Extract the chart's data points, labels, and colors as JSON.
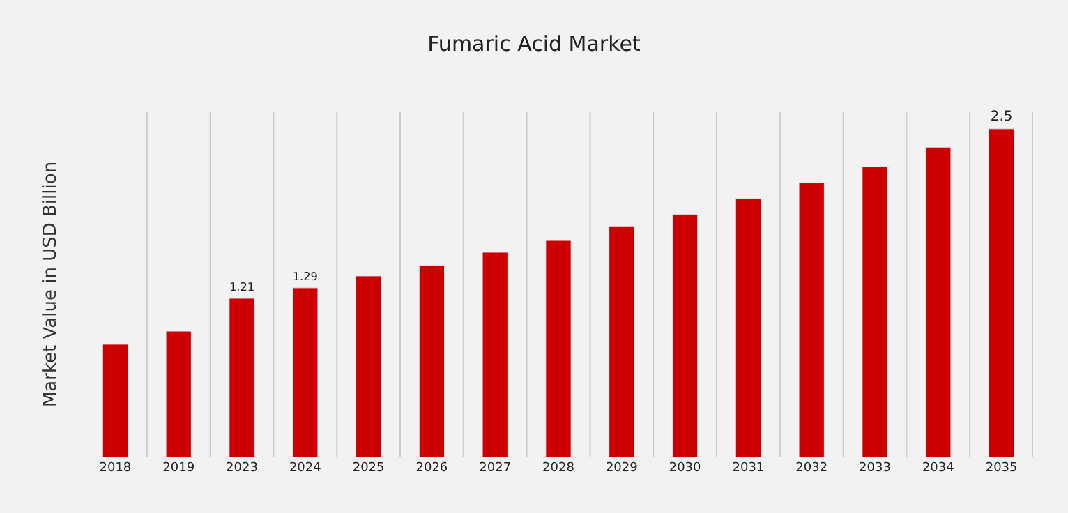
{
  "chart_data": {
    "type": "bar",
    "title": "Fumaric Acid Market",
    "ylabel": "Market Value in USD Billion",
    "categories": [
      "2018",
      "2019",
      "2023",
      "2024",
      "2025",
      "2026",
      "2027",
      "2028",
      "2029",
      "2030",
      "2031",
      "2032",
      "2033",
      "2034",
      "2035"
    ],
    "values": [
      0.86,
      0.96,
      1.21,
      1.29,
      1.38,
      1.46,
      1.56,
      1.65,
      1.76,
      1.85,
      1.97,
      2.09,
      2.21,
      2.36,
      2.5
    ],
    "value_labels": [
      null,
      null,
      "1.21",
      "1.29",
      null,
      null,
      null,
      null,
      null,
      null,
      null,
      null,
      null,
      null,
      "2.5"
    ],
    "color": "#cc0000",
    "grid": "x",
    "tick_labels": "x",
    "legend": false
  }
}
